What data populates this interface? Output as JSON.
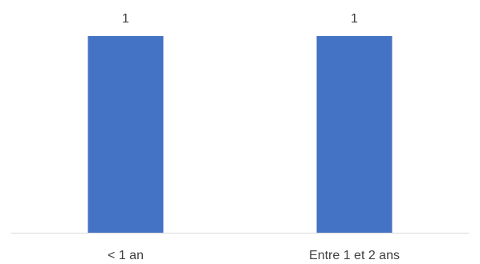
{
  "chart_data": {
    "type": "bar",
    "categories": [
      "< 1 an",
      "Entre 1 et 2 ans"
    ],
    "values": [
      1,
      1
    ],
    "data_labels": [
      "1",
      "1"
    ],
    "ylim": [
      0,
      1
    ],
    "grid": false,
    "legend": "none",
    "title": "",
    "xlabel": "",
    "ylabel": ""
  },
  "colors": {
    "bar": "#4472C4",
    "axis": "#D9D9D9",
    "text": "#404040"
  }
}
